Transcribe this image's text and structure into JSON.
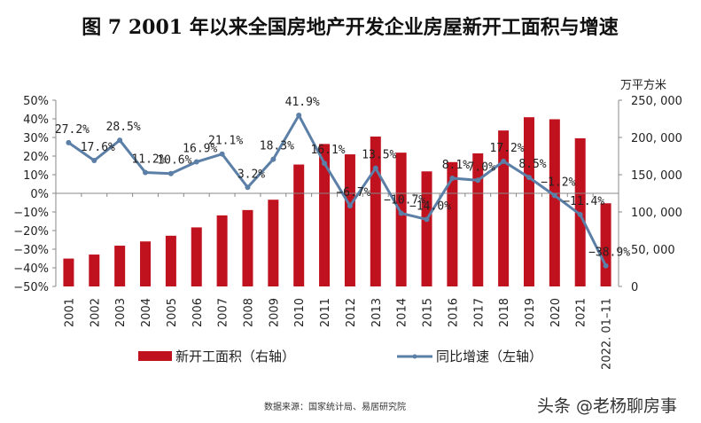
{
  "chart_data": {
    "type": "bar+line",
    "title": "图 7   2001 年以来全国房地产开发企业房屋新开工面积与增速",
    "categories": [
      "2001",
      "2002",
      "2003",
      "2004",
      "2005",
      "2006",
      "2007",
      "2008",
      "2009",
      "2010",
      "2011",
      "2012",
      "2013",
      "2014",
      "2015",
      "2016",
      "2017",
      "2018",
      "2019",
      "2020",
      "2021",
      "2022. 01–11"
    ],
    "series": [
      {
        "name": "新开工面积（右轴）",
        "type": "bar",
        "axis": "right",
        "color": "#C0111F",
        "values": [
          37394,
          42800,
          54708,
          60414,
          68064,
          79253,
          95402,
          102553,
          116422,
          163647,
          191237,
          177334,
          201208,
          179592,
          154454,
          166928,
          178654,
          209342,
          227154,
          224433,
          198895,
          111632
        ]
      },
      {
        "name": "同比增速（左轴）",
        "type": "line",
        "axis": "left",
        "color": "#5B7FA6",
        "values": [
          27.2,
          17.6,
          28.5,
          11.2,
          10.6,
          16.9,
          21.1,
          3.2,
          18.3,
          41.9,
          16.1,
          -6.7,
          13.5,
          -10.7,
          -14.0,
          8.1,
          7.0,
          17.2,
          8.5,
          -1.2,
          -11.4,
          -38.9
        ],
        "labels": [
          "27.2%",
          "17.6%",
          "28.5%",
          "11.2%",
          "10.6%",
          "16.9%",
          "21.1%",
          "3.2%",
          "18.3%",
          "41.9%",
          "16.1%",
          "-6.7%",
          "13.5%",
          "-10.7%",
          "-14.0%",
          "8.1%",
          "7.0%",
          "17.2%",
          "8.5%",
          "-1.2%",
          "-11.4%",
          "-38.9%"
        ]
      }
    ],
    "left_axis": {
      "ylim": [
        -50,
        50
      ],
      "ticks": [
        "50%",
        "40%",
        "30%",
        "20%",
        "10%",
        "0%",
        "-10%",
        "-20%",
        "-30%",
        "-40%",
        "-50%"
      ]
    },
    "right_axis": {
      "unit": "万平方米",
      "ylim": [
        0,
        250000
      ],
      "ticks": [
        "250, 000",
        "200, 000",
        "150, 000",
        "100, 000",
        "50, 000",
        "0"
      ]
    },
    "grid": false,
    "legend_position": "bottom"
  },
  "source": "数据来源：国家统计局、易居研究院",
  "watermark": "头条 @老杨聊房事"
}
